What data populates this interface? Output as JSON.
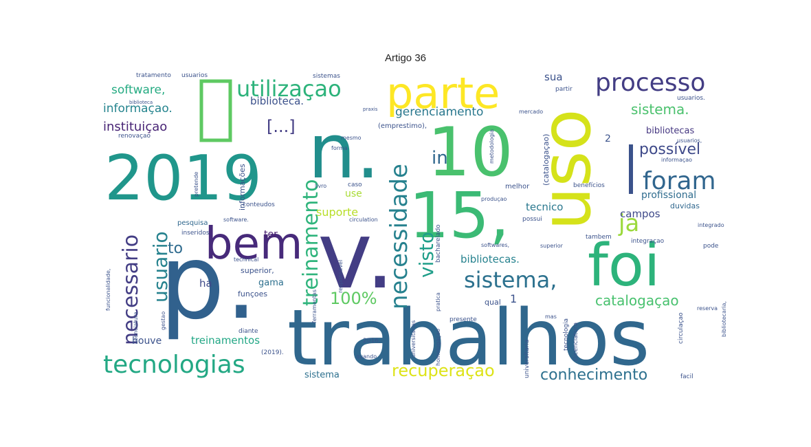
{
  "page_title": "Artigo 36",
  "words": [
    {
      "text": "trabalhos",
      "color": "#30678d"
    },
    {
      "text": "p.",
      "color": "#31618d"
    },
    {
      "text": "v.",
      "color": "#433d84"
    },
    {
      "text": "2019",
      "color": "#20968b"
    },
    {
      "text": "n.",
      "color": "#218e8c"
    },
    {
      "text": "10",
      "color": "#49c16d"
    },
    {
      "text": "15,",
      "color": "#3bba75"
    },
    {
      "text": "uso",
      "color": "#d5e21a"
    },
    {
      "text": "foi",
      "color": "#2db37b"
    },
    {
      "text": "parte",
      "color": "#fde725"
    },
    {
      "text": "bem",
      "color": "#472a7a"
    },
    {
      "text": "tecnologias",
      "color": "#23a884"
    },
    {
      "text": "processo",
      "color": "#433d84"
    },
    {
      "text": "utilizaçao",
      "color": "#2db37b"
    },
    {
      "text": "sistema,",
      "color": "#2c718e"
    },
    {
      "text": "foram",
      "color": "#31668e"
    },
    {
      "text": "necessidade",
      "color": "#26818e"
    },
    {
      "text": "treinamento",
      "color": "#2fb47c"
    },
    {
      "text": "necessario",
      "color": "#433d84"
    },
    {
      "text": "usuario",
      "color": "#26828e"
    },
    {
      "text": "ja",
      "color": "#9bd93c"
    },
    {
      "text": "sistema.",
      "color": "#4ac16d"
    },
    {
      "text": "possível",
      "color": "#3e4989"
    },
    {
      "text": "catalogaçao",
      "color": "#48c16e"
    },
    {
      "text": "100%",
      "color": "#5ec962"
    },
    {
      "text": "recuperaçao",
      "color": "#dde318"
    },
    {
      "text": "conhecimento",
      "color": "#2d708e"
    },
    {
      "text": "[...]",
      "color": "#433d84"
    },
    {
      "text": "in",
      "color": "#30678d"
    },
    {
      "text": "to",
      "color": "#2f6b8e"
    },
    {
      "text": "visto",
      "color": "#1f9e89"
    },
    {
      "text": "gerenciamento",
      "color": "#2a788e"
    },
    {
      "text": "instituiçao",
      "color": "#482475"
    },
    {
      "text": "informaçao.",
      "color": "#25848e"
    },
    {
      "text": "software,",
      "color": "#25ab82"
    },
    {
      "text": "biblioteca.",
      "color": "#3b518b"
    },
    {
      "text": "bibliotecas.",
      "color": "#26828e"
    },
    {
      "text": "treinamentos",
      "color": "#22a785"
    },
    {
      "text": "suporte",
      "color": "#b8de29"
    },
    {
      "text": "tecnico",
      "color": "#2a788e"
    },
    {
      "text": "campos",
      "color": "#3e4989"
    },
    {
      "text": "bibliotecas",
      "color": "#453781"
    },
    {
      "text": "profissional",
      "color": "#2f6c8e"
    },
    {
      "text": "sua",
      "color": "#3b528b"
    },
    {
      "text": "houve",
      "color": "#3b528b"
    },
    {
      "text": "gama",
      "color": "#2d708e"
    },
    {
      "text": "ter",
      "color": "#482071"
    },
    {
      "text": "ha",
      "color": "#3e4a89"
    },
    {
      "text": "use",
      "color": "#a8db34"
    },
    {
      "text": "qual",
      "color": "#3b528b"
    },
    {
      "text": "1",
      "color": "#3b528b"
    },
    {
      "text": "2",
      "color": "#3b528b"
    },
    {
      "text": "sistema",
      "color": "#2d708e"
    },
    {
      "text": "superior,",
      "color": "#3b528b"
    },
    {
      "text": "funçoes",
      "color": "#3b528b"
    },
    {
      "text": "pesquisa",
      "color": "#31688e"
    },
    {
      "text": "informações",
      "color": "#3b528b"
    },
    {
      "text": "(catalogaçao)",
      "color": "#3b528b"
    },
    {
      "text": "(emprestimo),",
      "color": "#3b528b"
    },
    {
      "text": "melhor",
      "color": "#3b528b"
    },
    {
      "text": "duvidas",
      "color": "#31688e"
    },
    {
      "text": "integraçao",
      "color": "#3b528b"
    },
    {
      "text": "tambem",
      "color": "#3b528b"
    },
    {
      "text": "possui",
      "color": "#3b528b"
    },
    {
      "text": "inseridos",
      "color": "#3b528b"
    },
    {
      "text": "conteudos",
      "color": "#3b528b"
    },
    {
      "text": "software.",
      "color": "#3b528b"
    },
    {
      "text": "renovaçao",
      "color": "#3b528b"
    },
    {
      "text": "tratamento",
      "color": "#3b528b"
    },
    {
      "text": "usuarios",
      "color": "#3b528b"
    },
    {
      "text": "sistemas",
      "color": "#3b528b"
    },
    {
      "text": "bacharelado",
      "color": "#3b528b"
    },
    {
      "text": "pode",
      "color": "#3b528b"
    },
    {
      "text": "caso",
      "color": "#3b528b"
    },
    {
      "text": "benefícios",
      "color": "#3b528b"
    },
    {
      "text": "presente",
      "color": "#3b528b"
    },
    {
      "text": "diante",
      "color": "#3b528b"
    },
    {
      "text": "facil",
      "color": "#3b528b"
    },
    {
      "text": "2016,",
      "color": "#3b528b"
    },
    {
      "text": "quando",
      "color": "#3b528b"
    },
    {
      "text": "produçao",
      "color": "#3b528b"
    },
    {
      "text": "circulation",
      "color": "#3b528b"
    },
    {
      "text": "technical",
      "color": "#3b528b"
    },
    {
      "text": "gestao",
      "color": "#3b528b"
    },
    {
      "text": "reserva",
      "color": "#3b528b"
    },
    {
      "text": "integrado",
      "color": "#3b528b"
    },
    {
      "text": "partir",
      "color": "#3b528b"
    },
    {
      "text": "mercado",
      "color": "#3b528b"
    },
    {
      "text": "forma",
      "color": "#3b528b"
    },
    {
      "text": "livro",
      "color": "#3b528b"
    },
    {
      "text": "mesmo",
      "color": "#3b528b"
    },
    {
      "text": "metodologia",
      "color": "#3b528b"
    },
    {
      "text": "mas",
      "color": "#3b528b"
    },
    {
      "text": "usuarios,",
      "color": "#3b528b"
    },
    {
      "text": "usuarios.",
      "color": "#3b528b"
    },
    {
      "text": "softwares,",
      "color": "#3b528b"
    },
    {
      "text": "superior",
      "color": "#3b528b"
    },
    {
      "text": "pretende",
      "color": "#3b528b"
    },
    {
      "text": "licenciatura",
      "color": "#3b528b"
    },
    {
      "text": "pratica",
      "color": "#3b528b"
    },
    {
      "text": "ferramentas",
      "color": "#3b528b"
    },
    {
      "text": "responsavel",
      "color": "#3b528b"
    },
    {
      "text": "universitarias",
      "color": "#3b528b"
    },
    {
      "text": "universitaria",
      "color": "#3b528b"
    },
    {
      "text": "tecnologia",
      "color": "#3b528b"
    },
    {
      "text": "(licenciatura",
      "color": "#3b528b"
    },
    {
      "text": "circulaçao",
      "color": "#3b528b"
    },
    {
      "text": "bibliotecaria,",
      "color": "#3b528b"
    },
    {
      "text": "funcionalidade,",
      "color": "#3b528b"
    },
    {
      "text": "homologaçao",
      "color": "#3b528b"
    },
    {
      "text": "(2019).",
      "color": "#3b528b"
    },
    {
      "text": "praxis",
      "color": "#3b528b"
    },
    {
      "text": "biblioteca",
      "color": "#3b528b"
    },
    {
      "text": "informaçao",
      "color": "#3b528b"
    }
  ]
}
